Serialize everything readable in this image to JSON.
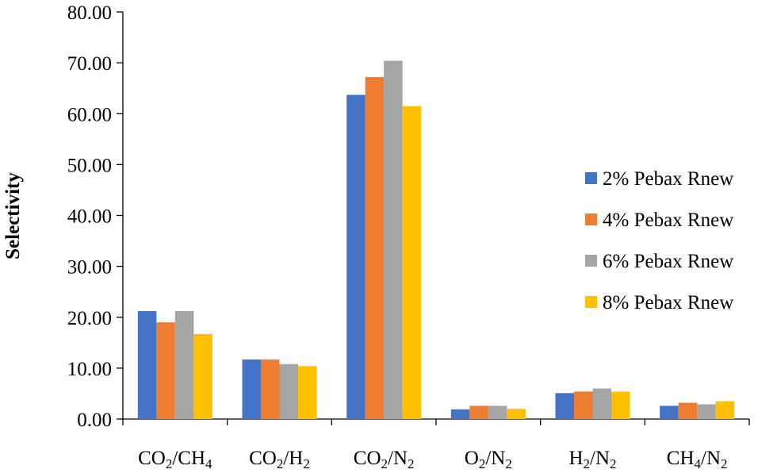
{
  "chart_data": {
    "type": "bar",
    "title": "",
    "xlabel": "",
    "ylabel": "Selectivity",
    "ylim": [
      0,
      80
    ],
    "yticks": [
      "0.00",
      "10.00",
      "20.00",
      "30.00",
      "40.00",
      "50.00",
      "60.00",
      "70.00",
      "80.00"
    ],
    "grid": false,
    "legend_position": "right",
    "categories": [
      {
        "main": "CO",
        "sub": "2",
        "rest": "/CH",
        "sub2": "4"
      },
      {
        "main": "CO",
        "sub": "2",
        "rest": "/H",
        "sub2": "2"
      },
      {
        "main": "CO",
        "sub": "2",
        "rest": "/N",
        "sub2": "2"
      },
      {
        "main": "O",
        "sub": "2",
        "rest": "/N",
        "sub2": "2"
      },
      {
        "main": "H",
        "sub": "2",
        "rest": "/N",
        "sub2": "2"
      },
      {
        "main": "CH",
        "sub": "4",
        "rest": "/N",
        "sub2": "2"
      }
    ],
    "series": [
      {
        "name": "2% Pebax Rnew",
        "color": "#4472C4",
        "values": [
          21.2,
          11.7,
          63.7,
          1.9,
          5.1,
          2.6
        ]
      },
      {
        "name": "4% Pebax Rnew",
        "color": "#ED7D31",
        "values": [
          19.0,
          11.7,
          67.2,
          2.6,
          5.4,
          3.2
        ]
      },
      {
        "name": "6% Pebax Rnew",
        "color": "#A5A5A5",
        "values": [
          21.2,
          10.8,
          70.4,
          2.6,
          6.0,
          2.9
        ]
      },
      {
        "name": "8% Pebax Rnew",
        "color": "#FFC000",
        "values": [
          16.7,
          10.4,
          61.5,
          2.0,
          5.4,
          3.5
        ]
      }
    ]
  }
}
